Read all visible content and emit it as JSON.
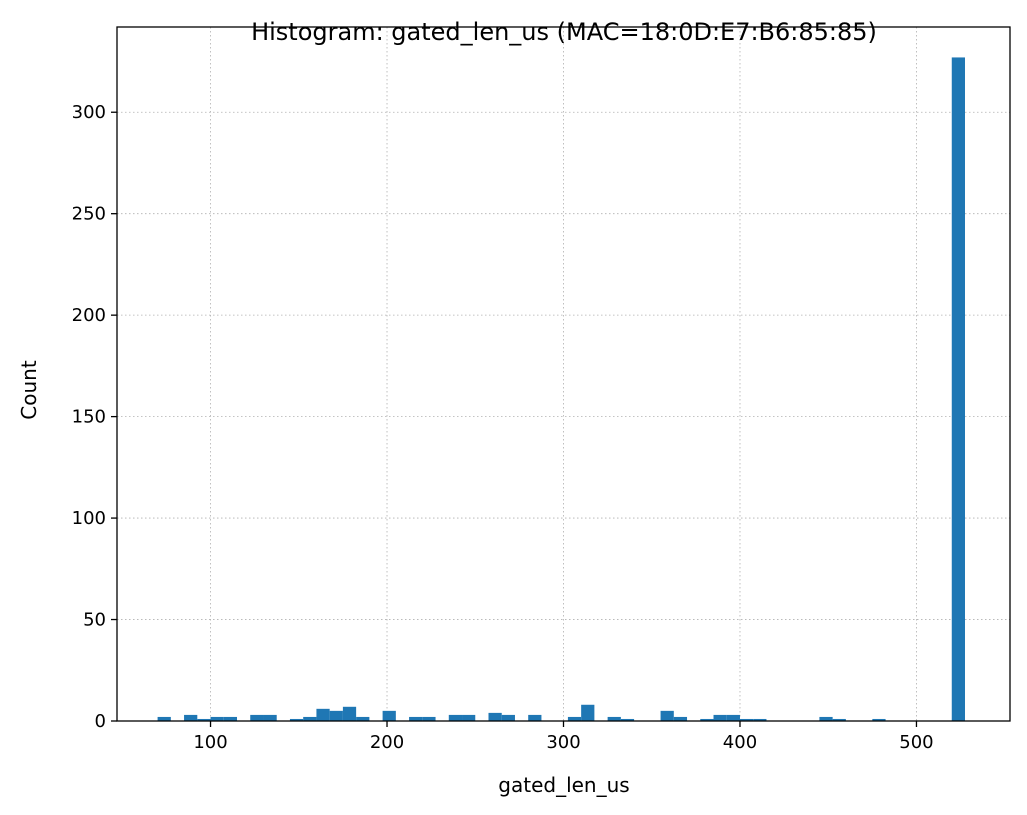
{
  "chart_data": {
    "type": "bar",
    "title": "Histogram: gated_len_us (MAC=18:0D:E7:B6:85:85)",
    "xlabel": "gated_len_us",
    "ylabel": "Count",
    "xlim": [
      47,
      553
    ],
    "ylim": [
      0,
      342
    ],
    "xticks": [
      100,
      200,
      300,
      400,
      500
    ],
    "yticks": [
      0,
      50,
      100,
      150,
      200,
      250,
      300
    ],
    "grid": true,
    "bar_color": "#1f77b4",
    "bin_width": 7.5,
    "bins": [
      {
        "x": 70.0,
        "count": 2
      },
      {
        "x": 85.0,
        "count": 3
      },
      {
        "x": 92.5,
        "count": 1
      },
      {
        "x": 100.0,
        "count": 2
      },
      {
        "x": 107.5,
        "count": 2
      },
      {
        "x": 122.5,
        "count": 3
      },
      {
        "x": 130.0,
        "count": 3
      },
      {
        "x": 145.0,
        "count": 1
      },
      {
        "x": 152.5,
        "count": 2
      },
      {
        "x": 160.0,
        "count": 6
      },
      {
        "x": 167.5,
        "count": 5
      },
      {
        "x": 175.0,
        "count": 7
      },
      {
        "x": 182.5,
        "count": 2
      },
      {
        "x": 197.5,
        "count": 5
      },
      {
        "x": 212.5,
        "count": 2
      },
      {
        "x": 220.0,
        "count": 2
      },
      {
        "x": 235.0,
        "count": 3
      },
      {
        "x": 242.5,
        "count": 3
      },
      {
        "x": 257.5,
        "count": 4
      },
      {
        "x": 265.0,
        "count": 3
      },
      {
        "x": 280.0,
        "count": 3
      },
      {
        "x": 302.5,
        "count": 2
      },
      {
        "x": 310.0,
        "count": 8
      },
      {
        "x": 325.0,
        "count": 2
      },
      {
        "x": 332.5,
        "count": 1
      },
      {
        "x": 355.0,
        "count": 5
      },
      {
        "x": 362.5,
        "count": 2
      },
      {
        "x": 377.5,
        "count": 1
      },
      {
        "x": 385.0,
        "count": 3
      },
      {
        "x": 392.5,
        "count": 3
      },
      {
        "x": 400.0,
        "count": 1
      },
      {
        "x": 407.5,
        "count": 1
      },
      {
        "x": 445.0,
        "count": 2
      },
      {
        "x": 452.5,
        "count": 1
      },
      {
        "x": 475.0,
        "count": 1
      },
      {
        "x": 520.0,
        "count": 327
      }
    ]
  }
}
